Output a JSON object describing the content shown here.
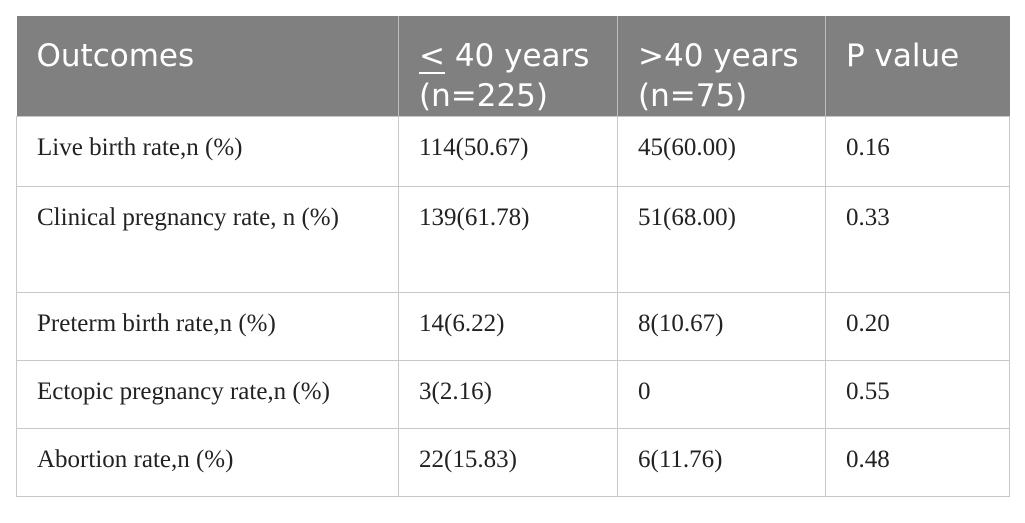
{
  "table": {
    "headers": {
      "outcomes": "Outcomes",
      "group1_symbol": "<",
      "group1_rest": " 40 years (n=225)",
      "group2": ">40 years (n=75)",
      "pvalue": "P value"
    },
    "rows": [
      {
        "outcome": "Live birth rate,n (%)",
        "g1": "114(50.67)",
        "g2": "45(60.00)",
        "p": "0.16"
      },
      {
        "outcome": "Clinical pregnancy rate, n (%)",
        "g1": "139(61.78)",
        "g2": "51(68.00)",
        "p": "0.33"
      },
      {
        "outcome": "Preterm birth rate,n (%)",
        "g1": "14(6.22)",
        "g2": "8(10.67)",
        "p": "0.20"
      },
      {
        "outcome": "Ectopic pregnancy rate,n (%)",
        "g1": "3(2.16)",
        "g2": "0",
        "p": "0.55"
      },
      {
        "outcome": "Abortion rate,n (%)",
        "g1": "22(15.83)",
        "g2": "6(11.76)",
        "p": "0.48"
      }
    ]
  }
}
